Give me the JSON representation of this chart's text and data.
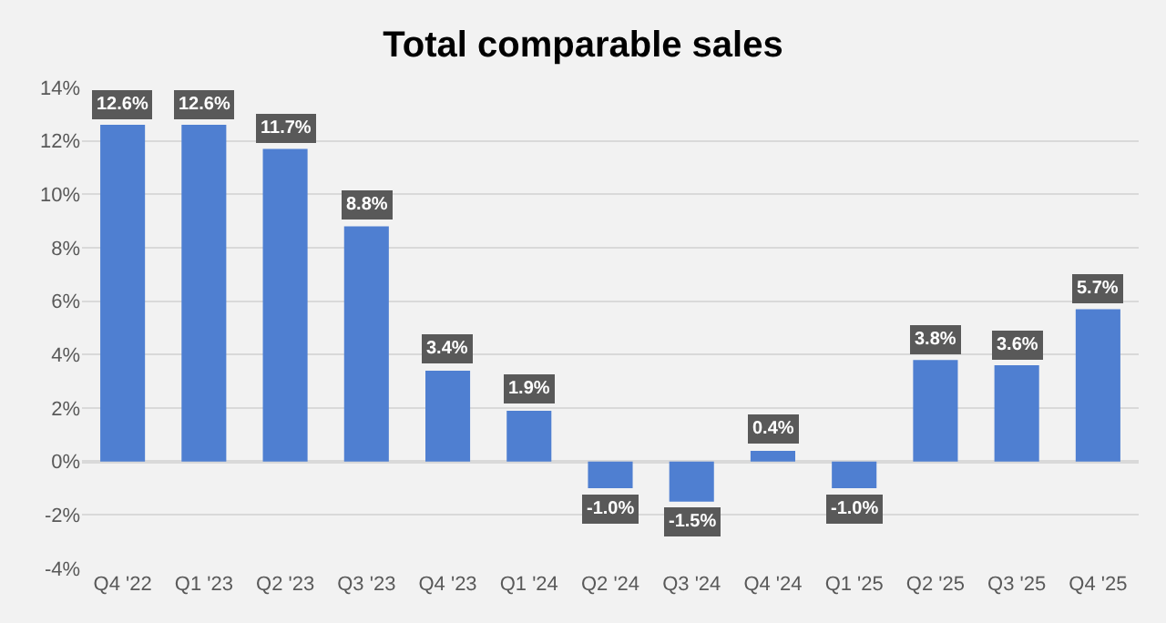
{
  "chart_data": {
    "type": "bar",
    "title": "Total comparable sales",
    "categories": [
      "Q4 '22",
      "Q1 '23",
      "Q2 '23",
      "Q3 '23",
      "Q4 '23",
      "Q1 '24",
      "Q2 '24",
      "Q3 '24",
      "Q4 '24",
      "Q1 '25",
      "Q2 '25",
      "Q3 '25",
      "Q4 '25"
    ],
    "values": [
      12.6,
      12.6,
      11.7,
      8.8,
      3.4,
      1.9,
      -1.0,
      -1.5,
      0.4,
      -1.0,
      3.8,
      3.6,
      5.7
    ],
    "value_labels": [
      "12.6%",
      "12.6%",
      "11.7%",
      "8.8%",
      "3.4%",
      "1.9%",
      "-1.0%",
      "-1.5%",
      "0.4%",
      "-1.0%",
      "3.8%",
      "3.6%",
      "5.7%"
    ],
    "color": "#4f7fd1",
    "ylim": [
      -4,
      14
    ],
    "yticks": [
      {
        "value": -4,
        "label": "-4%"
      },
      {
        "value": -2,
        "label": "-2%"
      },
      {
        "value": 0,
        "label": "0%"
      },
      {
        "value": 2,
        "label": "2%"
      },
      {
        "value": 4,
        "label": "4%"
      },
      {
        "value": 6,
        "label": "6%"
      },
      {
        "value": 8,
        "label": "8%"
      },
      {
        "value": 10,
        "label": "10%"
      },
      {
        "value": 12,
        "label": "12%"
      },
      {
        "value": 14,
        "label": "14%"
      }
    ],
    "grid": "y",
    "legend": false
  }
}
